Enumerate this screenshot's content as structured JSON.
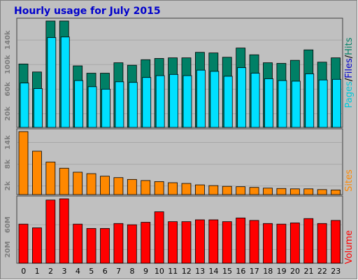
{
  "title": "Hourly usage for July 2015",
  "colors": {
    "frame_bg": "#c0c0c0",
    "panel_bg": "#c0c0c0",
    "title": "#0000cc",
    "hits": "#008066",
    "files": "#00e0ff",
    "pages": "#00c8d8",
    "sites": "#ff8800",
    "volume": "#ff0000",
    "grid": "#a8a8a8",
    "tick_text": "#7d7d7d",
    "sep": "#000000"
  },
  "side_labels": {
    "top": [
      "Pages",
      "/",
      "Files",
      "/",
      "Hits"
    ],
    "middle": "Sites",
    "bottom": "Volume"
  },
  "chart_data": {
    "type": "bar",
    "title": "Hourly usage for July 2015",
    "categories": [
      "0",
      "1",
      "2",
      "3",
      "4",
      "5",
      "6",
      "7",
      "8",
      "9",
      "10",
      "11",
      "12",
      "13",
      "14",
      "15",
      "16",
      "17",
      "18",
      "19",
      "20",
      "21",
      "22",
      "23"
    ],
    "panels": [
      {
        "name": "top",
        "yticks": [
          20000,
          60000,
          100000,
          140000
        ],
        "ytick_labels": [
          "20k",
          "60k",
          "100k",
          "140k"
        ],
        "ylim": [
          0,
          171000
        ],
        "series": [
          {
            "name": "Hits",
            "values": [
              101000,
              88000,
              171000,
              171000,
              98000,
              86000,
              86000,
              103000,
              99000,
              108000,
              110000,
              111000,
              111000,
              120000,
              119000,
              112000,
              127000,
              116000,
              103000,
              102000,
              107000,
              124000,
              104000,
              111000
            ]
          },
          {
            "name": "Files",
            "values": [
              70000,
              61000,
              144000,
              145000,
              74000,
              64000,
              60000,
              72000,
              71000,
              79000,
              82000,
              84000,
              82000,
              91000,
              89000,
              81000,
              95000,
              86000,
              77000,
              74000,
              73000,
              85000,
              75000,
              76000
            ]
          }
        ]
      },
      {
        "name": "middle",
        "yticks": [
          2000,
          8000,
          14000
        ],
        "ytick_labels": [
          "2k",
          "8k",
          "14k"
        ],
        "ylim": [
          0,
          17000
        ],
        "series": [
          {
            "name": "Sites",
            "values": [
              17000,
              11600,
              8600,
              6900,
              5800,
              5400,
              4700,
              4300,
              3800,
              3500,
              3200,
              2900,
              2700,
              2300,
              2100,
              1900,
              1800,
              1600,
              1400,
              1300,
              1200,
              1200,
              1000,
              900
            ]
          }
        ]
      },
      {
        "name": "bottom",
        "yticks": [
          20000,
          60000
        ],
        "ytick_labels": [
          "20M",
          "60M"
        ],
        "ylim": [
          0,
          102000
        ],
        "series": [
          {
            "name": "Volume",
            "values": [
              61000,
              55000,
              100000,
              102000,
              61000,
              54000,
              54000,
              62000,
              60000,
              64000,
              81000,
              65000,
              65000,
              68000,
              68000,
              65000,
              71000,
              67000,
              62000,
              61000,
              63000,
              70000,
              62000,
              67000
            ]
          }
        ]
      }
    ],
    "grid": true,
    "xlabel": "",
    "ylabel": ""
  }
}
